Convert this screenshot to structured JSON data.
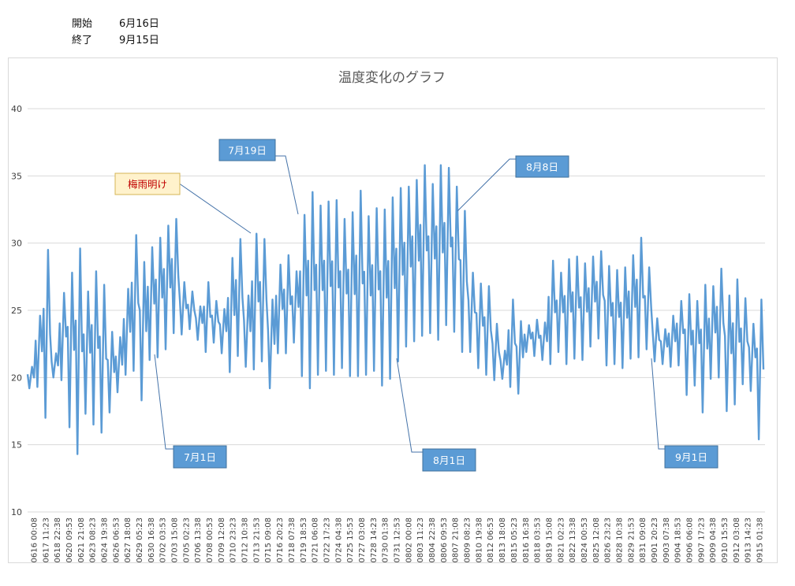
{
  "header": {
    "start_label": "開始",
    "start_value": "6月16日",
    "end_label": "終了",
    "end_value": "9月15日"
  },
  "colors": {
    "series": "#5b9bd5",
    "callout_fill": "#5b9bd5",
    "callout_yellow_fill": "#fff2cc",
    "gridline": "#d9d9d9"
  },
  "chart_data": {
    "type": "line",
    "title": "温度変化のグラフ",
    "xlabel": "",
    "ylabel": "",
    "ylim": [
      10,
      40
    ],
    "yticks": [
      10,
      15,
      20,
      25,
      30,
      35,
      40
    ],
    "grid": true,
    "legend": "none",
    "x_tick_labels": [
      "0616 00:08",
      "0617 11:23",
      "0618 22:38",
      "0620 09:53",
      "0621 21:08",
      "0623 08:23",
      "0624 19:38",
      "0626 06:53",
      "0627 18:08",
      "0629 05:23",
      "0630 16:38",
      "0702 03:53",
      "0703 15:08",
      "0705 02:23",
      "0706 13:38",
      "0708 00:53",
      "0709 12:08",
      "0710 23:23",
      "0712 10:38",
      "0713 21:53",
      "0715 09:08",
      "0716 20:23",
      "0718 07:38",
      "0719 18:53",
      "0721 06:08",
      "0722 17:23",
      "0724 04:38",
      "0725 15:53",
      "0727 03:08",
      "0728 14:23",
      "0730 01:38",
      "0731 12:53",
      "0802 00:08",
      "0803 11:23",
      "0804 22:38",
      "0806 09:53",
      "0807 21:08",
      "0809 08:23",
      "0810 19:38",
      "0812 06:53",
      "0813 18:08",
      "0815 05:23",
      "0816 16:38",
      "0818 03:53",
      "0819 15:08",
      "0821 02:23",
      "0822 13:38",
      "0824 00:53",
      "0825 12:08",
      "0826 23:23",
      "0828 10:38",
      "0829 21:53",
      "0831 09:08",
      "0901 20:23",
      "0903 07:38",
      "0904 18:53",
      "0906 06:08",
      "0907 17:23",
      "0909 04:38",
      "0910 15:53",
      "0912 03:08",
      "0913 14:23",
      "0915 01:38"
    ],
    "daily_series": {
      "name": "",
      "dates": [
        "0616",
        "0617",
        "0618",
        "0619",
        "0620",
        "0621",
        "0622",
        "0623",
        "0624",
        "0625",
        "0626",
        "0627",
        "0628",
        "0629",
        "0630",
        "0701",
        "0702",
        "0703",
        "0704",
        "0705",
        "0706",
        "0707",
        "0708",
        "0709",
        "0710",
        "0711",
        "0712",
        "0713",
        "0714",
        "0715",
        "0716",
        "0717",
        "0718",
        "0719",
        "0720",
        "0721",
        "0722",
        "0723",
        "0724",
        "0725",
        "0726",
        "0727",
        "0728",
        "0729",
        "0730",
        "0731",
        "0801",
        "0802",
        "0803",
        "0804",
        "0805",
        "0806",
        "0807",
        "0808",
        "0809",
        "0810",
        "0811",
        "0812",
        "0813",
        "0814",
        "0815",
        "0816",
        "0817",
        "0818",
        "0819",
        "0820",
        "0821",
        "0822",
        "0823",
        "0824",
        "0825",
        "0826",
        "0827",
        "0828",
        "0829",
        "0830",
        "0831",
        "0901",
        "0902",
        "0903",
        "0904",
        "0905",
        "0906",
        "0907",
        "0908",
        "0909",
        "0910",
        "0911",
        "0912",
        "0913",
        "0914",
        "0915"
      ],
      "min": [
        19.2,
        19.3,
        17.0,
        20.0,
        19.8,
        16.3,
        14.3,
        17.3,
        16.5,
        15.9,
        17.4,
        18.9,
        20.2,
        20.5,
        18.3,
        21.3,
        21.5,
        22.1,
        23.3,
        23.2,
        23.6,
        22.8,
        21.9,
        22.6,
        21.8,
        20.4,
        21.6,
        20.8,
        20.6,
        21.2,
        19.2,
        21.8,
        21.8,
        22.6,
        20.1,
        19.2,
        20.2,
        20.5,
        20.2,
        20.7,
        20.1,
        20.1,
        20.2,
        20.5,
        19.4,
        19.9,
        21.2,
        22.3,
        22.7,
        23.1,
        23.3,
        22.8,
        23.9,
        23.4,
        21.9,
        21.9,
        20.7,
        20.2,
        19.8,
        19.9,
        19.3,
        18.8,
        21.9,
        21.6,
        21.3,
        21.0,
        21.9,
        21.0,
        21.4,
        21.3,
        22.3,
        22.9,
        20.9,
        21.0,
        20.7,
        21.4,
        21.5,
        22.1,
        21.2,
        21.0,
        20.8,
        20.9,
        18.7,
        19.4,
        17.4,
        19.9,
        20.0,
        17.5,
        18.0,
        19.5,
        19.0,
        15.4
      ],
      "max": [
        20.8,
        24.6,
        29.5,
        21.8,
        26.3,
        27.8,
        29.6,
        26.4,
        27.9,
        26.9,
        23.4,
        23.0,
        26.6,
        30.6,
        28.6,
        29.7,
        30.4,
        31.3,
        31.8,
        27.1,
        26.4,
        25.3,
        27.1,
        25.7,
        25.1,
        28.9,
        30.3,
        26.1,
        30.7,
        30.3,
        25.8,
        28.4,
        29.1,
        27.9,
        32.1,
        33.8,
        32.8,
        33.1,
        33.2,
        31.8,
        32.3,
        33.9,
        32.0,
        32.6,
        32.5,
        33.4,
        34.1,
        34.2,
        34.7,
        35.8,
        34.4,
        35.8,
        35.6,
        34.2,
        32.4,
        27.8,
        27.0,
        26.8,
        24.0,
        22.0,
        25.8,
        24.2,
        23.9,
        24.3,
        24.1,
        28.7,
        27.8,
        28.8,
        29.0,
        28.5,
        29.0,
        29.4,
        28.3,
        28.0,
        28.2,
        29.1,
        30.4,
        28.2,
        24.4,
        23.6,
        24.6,
        25.7,
        26.2,
        25.7,
        26.9,
        26.8,
        28.1,
        26.1,
        27.3,
        25.9,
        24.0,
        25.8
      ]
    },
    "annotations": [
      {
        "label": "梅雨明け",
        "style": "yellow",
        "date": "0713"
      },
      {
        "label": "7月19日",
        "style": "blue",
        "date": "0719"
      },
      {
        "label": "8月8日",
        "style": "blue",
        "date": "0808"
      },
      {
        "label": "7月1日",
        "style": "blue",
        "date": "0701"
      },
      {
        "label": "8月1日",
        "style": "blue",
        "date": "0801"
      },
      {
        "label": "9月1日",
        "style": "blue",
        "date": "0901"
      }
    ]
  }
}
